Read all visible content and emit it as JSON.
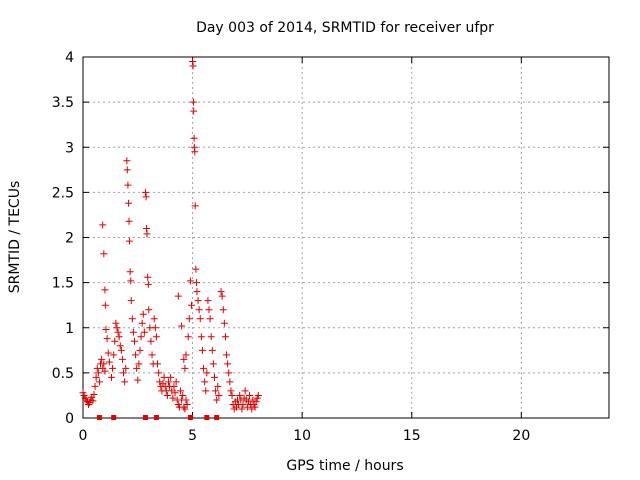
{
  "chart_data": {
    "type": "scatter",
    "title": "Day 003 of 2014, SRMTID for receiver ufpr",
    "xlabel": "GPS time / hours",
    "ylabel": "SRMTID / TECUs",
    "xlim": [
      0,
      24
    ],
    "ylim": [
      0,
      4
    ],
    "xticks": [
      "0",
      "5",
      "10",
      "15",
      "20"
    ],
    "yticks": [
      "0",
      "0.5",
      "1",
      "1.5",
      "2",
      "2.5",
      "3",
      "3.5",
      "4"
    ],
    "grid": true,
    "marker": "plus",
    "color": "#e00000",
    "series": [
      {
        "name": "SRMTID",
        "points": [
          [
            0.0,
            0.28
          ],
          [
            0.05,
            0.25
          ],
          [
            0.1,
            0.22
          ],
          [
            0.15,
            0.2
          ],
          [
            0.2,
            0.18
          ],
          [
            0.25,
            0.15
          ],
          [
            0.3,
            0.17
          ],
          [
            0.35,
            0.2
          ],
          [
            0.4,
            0.23
          ],
          [
            0.45,
            0.19
          ],
          [
            0.5,
            0.26
          ],
          [
            0.55,
            0.35
          ],
          [
            0.6,
            0.45
          ],
          [
            0.65,
            0.55
          ],
          [
            0.7,
            0.5
          ],
          [
            0.75,
            0.4
          ],
          [
            0.8,
            0.6
          ],
          [
            0.85,
            0.65
          ],
          [
            0.9,
            0.55
          ],
          [
            0.95,
            0.6
          ],
          [
            1.0,
            0.52
          ],
          [
            0.9,
            2.14
          ],
          [
            0.95,
            1.82
          ],
          [
            1.0,
            1.42
          ],
          [
            1.02,
            1.25
          ],
          [
            1.05,
            0.98
          ],
          [
            1.1,
            0.88
          ],
          [
            1.15,
            0.72
          ],
          [
            1.2,
            0.62
          ],
          [
            1.3,
            0.45
          ],
          [
            1.35,
            0.55
          ],
          [
            1.4,
            0.7
          ],
          [
            1.45,
            0.85
          ],
          [
            1.5,
            1.05
          ],
          [
            1.55,
            1.0
          ],
          [
            1.6,
            0.95
          ],
          [
            1.65,
            0.9
          ],
          [
            1.7,
            0.8
          ],
          [
            1.75,
            0.75
          ],
          [
            1.8,
            0.65
          ],
          [
            1.85,
            0.5
          ],
          [
            1.9,
            0.4
          ],
          [
            1.95,
            0.55
          ],
          [
            2.0,
            2.85
          ],
          [
            2.02,
            2.75
          ],
          [
            2.05,
            2.58
          ],
          [
            2.08,
            2.38
          ],
          [
            2.1,
            2.18
          ],
          [
            2.12,
            1.96
          ],
          [
            2.15,
            1.62
          ],
          [
            2.18,
            1.52
          ],
          [
            2.2,
            1.3
          ],
          [
            2.25,
            1.1
          ],
          [
            2.3,
            0.95
          ],
          [
            2.35,
            0.85
          ],
          [
            2.4,
            0.7
          ],
          [
            2.45,
            0.55
          ],
          [
            2.5,
            0.42
          ],
          [
            2.55,
            0.6
          ],
          [
            2.6,
            0.75
          ],
          [
            2.65,
            0.9
          ],
          [
            2.7,
            1.05
          ],
          [
            2.75,
            1.15
          ],
          [
            2.8,
            0.95
          ],
          [
            2.85,
            2.5
          ],
          [
            2.88,
            2.45
          ],
          [
            2.9,
            2.1
          ],
          [
            2.92,
            2.04
          ],
          [
            2.95,
            1.56
          ],
          [
            2.98,
            1.48
          ],
          [
            3.0,
            1.2
          ],
          [
            3.05,
            1.0
          ],
          [
            3.1,
            0.85
          ],
          [
            3.15,
            0.7
          ],
          [
            3.2,
            0.6
          ],
          [
            3.25,
            1.1
          ],
          [
            3.3,
            1.0
          ],
          [
            3.35,
            0.9
          ],
          [
            3.4,
            0.6
          ],
          [
            3.45,
            0.5
          ],
          [
            3.5,
            0.4
          ],
          [
            3.55,
            0.35
          ],
          [
            3.6,
            0.3
          ],
          [
            3.65,
            0.38
          ],
          [
            3.7,
            0.45
          ],
          [
            3.75,
            0.35
          ],
          [
            3.8,
            0.3
          ],
          [
            3.85,
            0.25
          ],
          [
            3.9,
            0.4
          ],
          [
            3.95,
            0.35
          ],
          [
            4.0,
            0.45
          ],
          [
            4.05,
            0.3
          ],
          [
            4.1,
            0.22
          ],
          [
            4.15,
            0.35
          ],
          [
            4.2,
            0.28
          ],
          [
            4.25,
            0.4
          ],
          [
            4.3,
            0.2
          ],
          [
            4.35,
            0.15
          ],
          [
            4.4,
            0.12
          ],
          [
            4.45,
            0.3
          ],
          [
            4.5,
            0.2
          ],
          [
            4.55,
            0.25
          ],
          [
            4.6,
            0.12
          ],
          [
            4.65,
            0.1
          ],
          [
            4.7,
            0.2
          ],
          [
            4.75,
            0.15
          ],
          [
            4.35,
            1.35
          ],
          [
            4.5,
            1.02
          ],
          [
            4.6,
            0.65
          ],
          [
            4.65,
            0.55
          ],
          [
            4.7,
            0.7
          ],
          [
            4.8,
            0.9
          ],
          [
            4.85,
            1.1
          ],
          [
            4.9,
            1.52
          ],
          [
            4.95,
            1.25
          ],
          [
            5.0,
            3.95
          ],
          [
            5.02,
            3.9
          ],
          [
            5.04,
            3.5
          ],
          [
            5.05,
            3.4
          ],
          [
            5.07,
            3.1
          ],
          [
            5.08,
            3.0
          ],
          [
            5.1,
            2.95
          ],
          [
            5.12,
            2.35
          ],
          [
            5.15,
            1.65
          ],
          [
            5.18,
            1.5
          ],
          [
            5.2,
            1.4
          ],
          [
            5.25,
            1.3
          ],
          [
            5.3,
            1.2
          ],
          [
            5.35,
            1.1
          ],
          [
            5.4,
            0.9
          ],
          [
            5.45,
            0.75
          ],
          [
            5.5,
            0.55
          ],
          [
            5.55,
            0.4
          ],
          [
            5.6,
            0.3
          ],
          [
            5.65,
            0.5
          ],
          [
            5.7,
            1.3
          ],
          [
            5.75,
            1.2
          ],
          [
            5.8,
            1.1
          ],
          [
            5.85,
            0.9
          ],
          [
            5.9,
            0.75
          ],
          [
            5.95,
            0.6
          ],
          [
            6.0,
            0.45
          ],
          [
            6.05,
            0.3
          ],
          [
            6.1,
            0.2
          ],
          [
            6.15,
            0.35
          ],
          [
            6.2,
            0.25
          ],
          [
            6.3,
            1.4
          ],
          [
            6.35,
            1.35
          ],
          [
            6.4,
            1.2
          ],
          [
            6.45,
            1.05
          ],
          [
            6.5,
            0.9
          ],
          [
            6.55,
            0.7
          ],
          [
            6.6,
            0.6
          ],
          [
            6.65,
            0.5
          ],
          [
            6.7,
            0.4
          ],
          [
            6.75,
            0.3
          ],
          [
            6.8,
            0.25
          ],
          [
            6.85,
            0.15
          ],
          [
            6.9,
            0.1
          ],
          [
            6.95,
            0.18
          ],
          [
            7.0,
            0.12
          ],
          [
            7.05,
            0.2
          ],
          [
            7.1,
            0.15
          ],
          [
            7.15,
            0.25
          ],
          [
            7.2,
            0.2
          ],
          [
            7.25,
            0.1
          ],
          [
            7.3,
            0.15
          ],
          [
            7.35,
            0.22
          ],
          [
            7.4,
            0.3
          ],
          [
            7.45,
            0.2
          ],
          [
            7.5,
            0.12
          ],
          [
            7.55,
            0.18
          ],
          [
            7.6,
            0.25
          ],
          [
            7.65,
            0.15
          ],
          [
            7.7,
            0.1
          ],
          [
            7.75,
            0.2
          ],
          [
            7.8,
            0.15
          ],
          [
            7.85,
            0.12
          ],
          [
            7.9,
            0.18
          ],
          [
            7.95,
            0.22
          ],
          [
            8.0,
            0.25
          ]
        ]
      }
    ],
    "zero_markers_x": [
      0.75,
      1.4,
      2.85,
      3.35,
      4.9,
      5.65,
      6.1
    ]
  }
}
